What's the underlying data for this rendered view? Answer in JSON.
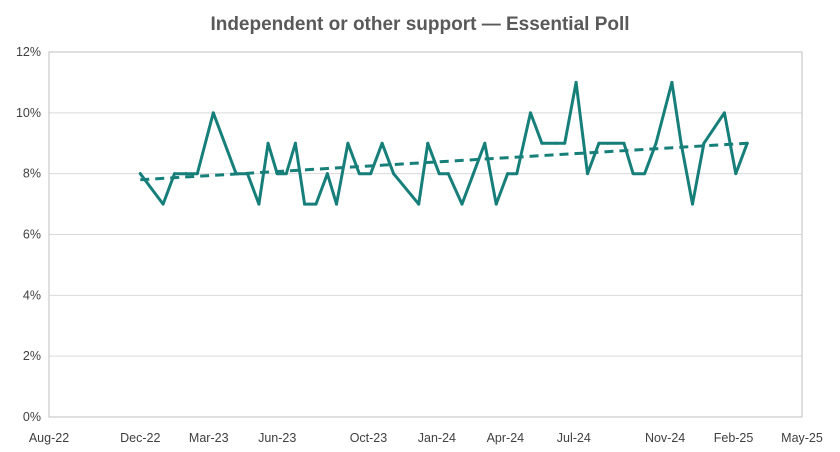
{
  "chart_data": {
    "type": "line",
    "title": "Independent or other support — Essential Poll",
    "xlabel": "",
    "ylabel": "",
    "ylim": [
      0,
      12
    ],
    "y_ticks": [
      0,
      2,
      4,
      6,
      8,
      10,
      12
    ],
    "y_tick_labels": [
      "0%",
      "2%",
      "4%",
      "6%",
      "8%",
      "10%",
      "12%"
    ],
    "x_tick_labels": [
      "Aug-22",
      "Dec-22",
      "Mar-23",
      "Jun-23",
      "Oct-23",
      "Jan-24",
      "Apr-24",
      "Jul-24",
      "Nov-24",
      "Feb-25",
      "May-25"
    ],
    "x_range_months": [
      0,
      33
    ],
    "x_tick_months": [
      0,
      4,
      7,
      10,
      14,
      17,
      20,
      23,
      27,
      30,
      33
    ],
    "grid": true,
    "legend": "none",
    "series": [
      {
        "name": "Independent or other",
        "color": "#177F7A",
        "x_months": [
          4.0,
          5.0,
          5.5,
          6.0,
          6.5,
          7.2,
          8.2,
          8.7,
          9.2,
          9.6,
          10.0,
          10.4,
          10.8,
          11.2,
          11.7,
          12.2,
          12.6,
          13.1,
          13.6,
          14.1,
          14.6,
          15.1,
          16.2,
          16.6,
          17.1,
          17.5,
          18.1,
          18.6,
          19.1,
          19.6,
          20.1,
          20.5,
          21.1,
          21.6,
          22.2,
          22.6,
          23.1,
          23.6,
          24.1,
          24.5,
          25.2,
          25.6,
          26.1,
          26.6,
          27.3,
          27.7,
          28.2,
          28.7,
          29.6,
          30.1,
          30.6
        ],
        "values": [
          8,
          7,
          8,
          8,
          8,
          10,
          8,
          8,
          7,
          9,
          8,
          8,
          9,
          7,
          7,
          8,
          7,
          9,
          8,
          8,
          9,
          8,
          7,
          9,
          8,
          8,
          7,
          8,
          9,
          7,
          8,
          8,
          10,
          9,
          9,
          9,
          11,
          8,
          9,
          9,
          9,
          8,
          8,
          9,
          11,
          9,
          7,
          9,
          10,
          8,
          9
        ]
      }
    ],
    "trendline": {
      "name": "Linear trend",
      "color": "#177F7A",
      "style": "dashed",
      "x_months": [
        4.0,
        30.6
      ],
      "values": [
        7.8,
        9.0
      ]
    }
  }
}
